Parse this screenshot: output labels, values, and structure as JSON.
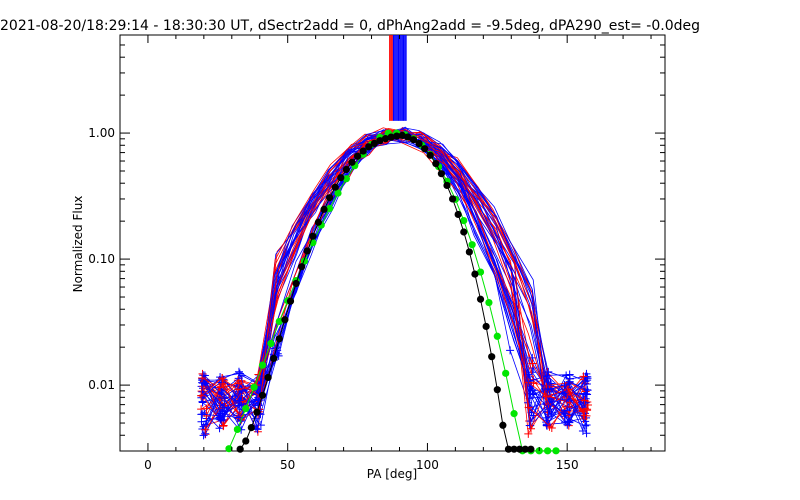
{
  "chart_data": {
    "type": "line",
    "title": "2021-08-20/18:29:14 - 18:30:30 UT, dSectr2add = 0, dPhAng2add = -9.5deg, dPA290_est= -0.0deg",
    "xlabel": "PA [deg]",
    "ylabel": "Normalized Flux",
    "xlim": [
      -10,
      185
    ],
    "ylim": [
      0.003,
      6.0
    ],
    "yscale": "log",
    "grid": false,
    "x_ticks": [
      0,
      50,
      100,
      150
    ],
    "x_tick_labels": [
      "0",
      "50",
      "100",
      "150"
    ],
    "y_ticks": [
      0.01,
      0.1,
      1.0
    ],
    "y_tick_labels": [
      "0.01",
      "0.10",
      "1.00"
    ],
    "colors": {
      "red_traces": "#ff0000",
      "blue_traces": "#0000ff",
      "green_fit": "#00e600",
      "black_fit": "#000000"
    },
    "series": [
      {
        "color": "#00e600",
        "style": "dots",
        "x": [
          29,
          32,
          35,
          38,
          41,
          44,
          47,
          50,
          53,
          56,
          59,
          62,
          65,
          68,
          71,
          74,
          77,
          80,
          83,
          86,
          89,
          92,
          95,
          98,
          101,
          104,
          107,
          110,
          113,
          116,
          119,
          122,
          125,
          128,
          131,
          134,
          137,
          140,
          143,
          146
        ],
        "y": [
          0.00313,
          0.00445,
          0.00651,
          0.00963,
          0.0144,
          0.0214,
          0.032,
          0.0467,
          0.0675,
          0.0964,
          0.135,
          0.186,
          0.252,
          0.334,
          0.434,
          0.551,
          0.68,
          0.812,
          0.926,
          0.997,
          0.999,
          0.97,
          0.902,
          0.8,
          0.675,
          0.542,
          0.414,
          0.298,
          0.202,
          0.13,
          0.0789,
          0.0452,
          0.0244,
          0.0124,
          0.00594,
          0.00301,
          0.00301,
          0.00301,
          0.00301,
          0.00301
        ]
      },
      {
        "color": "#000000",
        "style": "dots",
        "x": [
          33,
          35,
          37,
          39,
          41,
          43,
          45,
          47,
          49,
          51,
          53,
          55,
          57,
          59,
          61,
          63,
          65,
          67,
          69,
          71,
          73,
          75,
          77,
          79,
          81,
          83,
          85,
          87,
          89,
          91,
          93,
          95,
          97,
          99,
          101,
          103,
          105,
          107,
          109,
          111,
          113,
          115,
          117,
          119,
          121,
          123,
          125,
          127,
          129,
          131,
          133,
          135,
          137
        ],
        "y": [
          0.0031,
          0.0036,
          0.0046,
          0.0061,
          0.0083,
          0.0115,
          0.0163,
          0.0233,
          0.033,
          0.0463,
          0.064,
          0.087,
          0.116,
          0.152,
          0.196,
          0.248,
          0.307,
          0.372,
          0.442,
          0.514,
          0.586,
          0.655,
          0.72,
          0.778,
          0.828,
          0.87,
          0.903,
          0.928,
          0.946,
          0.958,
          0.93,
          0.886,
          0.826,
          0.752,
          0.666,
          0.572,
          0.476,
          0.384,
          0.3,
          0.226,
          0.164,
          0.114,
          0.076,
          0.048,
          0.0292,
          0.0168,
          0.0092,
          0.0048,
          0.0031,
          0.0031,
          0.0031,
          0.0031,
          0.0031
        ]
      }
    ]
  }
}
